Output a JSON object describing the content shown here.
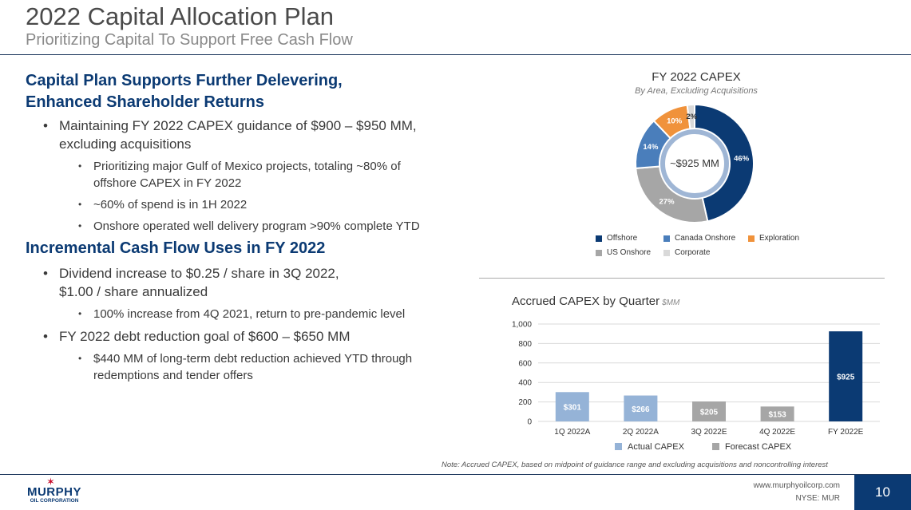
{
  "header": {
    "title": "2022 Capital Allocation Plan",
    "subtitle": "Prioritizing Capital To Support Free Cash Flow"
  },
  "left": {
    "heading1": [
      "Capital Plan Supports Further Delevering,",
      "Enhanced Shareholder Returns"
    ],
    "bullet1": [
      "Maintaining FY 2022 CAPEX guidance of $900 – $950 MM,",
      "excluding acquisitions"
    ],
    "sub1a": [
      "Prioritizing major Gulf of Mexico projects, totaling ~80% of",
      "offshore CAPEX in FY 2022"
    ],
    "sub1b": "~60% of spend is in 1H 2022",
    "sub1c": "Onshore operated well delivery program >90% complete YTD",
    "heading2": "Incremental Cash Flow Uses in FY 2022",
    "bullet2": [
      "Dividend increase to $0.25 / share in 3Q 2022,",
      "$1.00 / share annualized"
    ],
    "sub2a": "100% increase from 4Q 2021, return to pre-pandemic level",
    "bullet3": "FY 2022 debt reduction goal of $600 – $650 MM",
    "sub3a": [
      "$440 MM of long-term debt reduction achieved YTD through",
      "redemptions and tender offers"
    ]
  },
  "chart_data": [
    {
      "type": "pie",
      "title": "FY 2022 CAPEX",
      "subtitle": "By Area, Excluding Acquisitions",
      "center_label": "~$925 MM",
      "slices": [
        {
          "name": "Offshore",
          "value": 46,
          "label": "46%",
          "color": "#0b3a73"
        },
        {
          "name": "US Onshore",
          "value": 27,
          "label": "27%",
          "color": "#a6a6a6"
        },
        {
          "name": "Canada Onshore",
          "value": 14,
          "label": "14%",
          "color": "#4a7ebb"
        },
        {
          "name": "Exploration",
          "value": 10,
          "label": "10%",
          "color": "#f0923b"
        },
        {
          "name": "Corporate",
          "value": 2,
          "label": "2%",
          "color": "#d9d9d9"
        }
      ],
      "legend": [
        {
          "name": "Offshore",
          "color": "#0b3a73"
        },
        {
          "name": "Canada Onshore",
          "color": "#4a7ebb"
        },
        {
          "name": "Exploration",
          "color": "#f0923b"
        },
        {
          "name": "US Onshore",
          "color": "#a6a6a6"
        },
        {
          "name": "Corporate",
          "color": "#d9d9d9"
        }
      ]
    },
    {
      "type": "bar",
      "title": "Accrued CAPEX by Quarter",
      "unit": "$MM",
      "categories": [
        "1Q 2022A",
        "2Q 2022A",
        "3Q 2022E",
        "4Q 2022E",
        "FY 2022E"
      ],
      "values": [
        301,
        266,
        205,
        153,
        925
      ],
      "labels": [
        "$301",
        "$266",
        "$205",
        "$153",
        "$925"
      ],
      "kinds": [
        "actual",
        "actual",
        "forecast",
        "forecast",
        "total"
      ],
      "colors": {
        "actual": "#95b3d7",
        "forecast": "#a6a6a6",
        "total": "#0b3a73"
      },
      "ylim": [
        0,
        1000
      ],
      "yticks": [
        0,
        200,
        400,
        600,
        800,
        1000
      ],
      "ytick_labels": [
        "0",
        "200",
        "400",
        "600",
        "800",
        "1,000"
      ],
      "legend": [
        {
          "name": "Actual CAPEX",
          "color": "#95b3d7"
        },
        {
          "name": "Forecast CAPEX",
          "color": "#a6a6a6"
        }
      ]
    }
  ],
  "note": "Note: Accrued CAPEX, based on midpoint of guidance range and excluding acquisitions and noncontrolling interest",
  "footer": {
    "logo_name": "MURPHY",
    "logo_sub": "OIL CORPORATION",
    "website": "www.murphyoilcorp.com",
    "ticker": "NYSE: MUR",
    "page": "10"
  }
}
